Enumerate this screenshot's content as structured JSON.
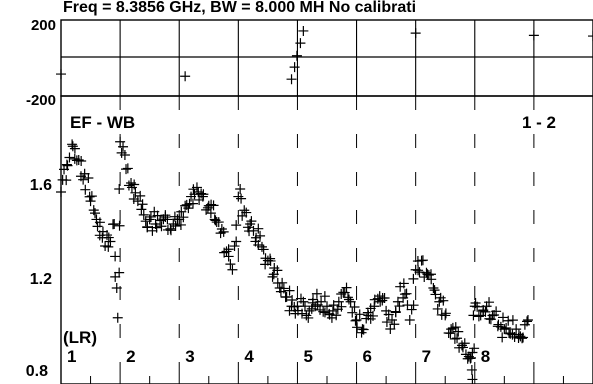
{
  "chart_data": [
    {
      "type": "scatter",
      "panel": "phase",
      "title": "Freq = 8.3856 GHz, BW = 8.000 MH   No calibrati",
      "y_ticks": [
        "200",
        "-200"
      ],
      "ylim": [
        -260,
        260
      ],
      "series": [
        {
          "points": [
            [
              0.0,
              -110
            ],
            [
              2.1,
              -125
            ],
            [
              3.9,
              -145
            ],
            [
              4.1,
              185
            ],
            [
              6.0,
              170
            ],
            [
              8.0,
              155
            ],
            [
              9.0,
              150
            ]
          ]
        }
      ]
    },
    {
      "type": "scatter",
      "panel": "amplitude",
      "title": "EF - WB",
      "baseline_label": "1 - 2",
      "pol_label": "(LR)",
      "y_ticks": [
        "1.6",
        "1.2",
        "0.8"
      ],
      "ylim": [
        0.76,
        2.02
      ],
      "scan_labels": [
        "1",
        "2",
        "3",
        "4",
        "5",
        "6",
        "7",
        "8"
      ],
      "series": [
        {
          "points": [
            [
              0.0,
              1.6
            ],
            [
              0.1,
              1.72
            ],
            [
              0.2,
              1.8
            ],
            [
              0.3,
              1.74
            ],
            [
              0.4,
              1.68
            ],
            [
              0.5,
              1.56
            ],
            [
              0.6,
              1.48
            ],
            [
              0.7,
              1.4
            ],
            [
              0.8,
              1.36
            ],
            [
              0.9,
              1.46
            ],
            [
              0.96,
              1.05
            ],
            [
              1.0,
              1.82
            ],
            [
              1.1,
              1.7
            ],
            [
              1.2,
              1.62
            ],
            [
              1.3,
              1.56
            ],
            [
              1.4,
              1.5
            ],
            [
              1.5,
              1.48
            ],
            [
              1.6,
              1.46
            ],
            [
              1.7,
              1.45
            ],
            [
              1.8,
              1.48
            ],
            [
              1.9,
              1.46
            ],
            [
              2.0,
              1.48
            ],
            [
              2.1,
              1.54
            ],
            [
              2.2,
              1.58
            ],
            [
              2.3,
              1.62
            ],
            [
              2.4,
              1.58
            ],
            [
              2.5,
              1.54
            ],
            [
              2.6,
              1.48
            ],
            [
              2.7,
              1.42
            ],
            [
              2.8,
              1.34
            ],
            [
              2.9,
              1.26
            ],
            [
              3.0,
              1.58
            ],
            [
              3.1,
              1.52
            ],
            [
              3.2,
              1.46
            ],
            [
              3.3,
              1.4
            ],
            [
              3.4,
              1.36
            ],
            [
              3.5,
              1.3
            ],
            [
              3.6,
              1.24
            ],
            [
              3.7,
              1.18
            ],
            [
              3.8,
              1.14
            ],
            [
              3.9,
              1.1
            ],
            [
              4.0,
              1.1
            ],
            [
              4.1,
              1.12
            ],
            [
              4.2,
              1.08
            ],
            [
              4.3,
              1.1
            ],
            [
              4.4,
              1.12
            ],
            [
              4.5,
              1.1
            ],
            [
              4.6,
              1.08
            ],
            [
              4.7,
              1.12
            ],
            [
              4.8,
              1.16
            ],
            [
              4.9,
              1.12
            ],
            [
              5.0,
              1.04
            ],
            [
              5.1,
              1.0
            ],
            [
              5.2,
              1.06
            ],
            [
              5.3,
              1.1
            ],
            [
              5.4,
              1.12
            ],
            [
              5.5,
              1.08
            ],
            [
              5.6,
              1.04
            ],
            [
              5.7,
              1.12
            ],
            [
              5.8,
              1.2
            ],
            [
              5.9,
              1.04
            ],
            [
              6.0,
              1.26
            ],
            [
              6.1,
              1.3
            ],
            [
              6.2,
              1.24
            ],
            [
              6.3,
              1.18
            ],
            [
              6.4,
              1.12
            ],
            [
              6.5,
              1.06
            ],
            [
              6.6,
              1.0
            ],
            [
              6.7,
              0.96
            ],
            [
              6.8,
              0.92
            ],
            [
              6.9,
              0.88
            ],
            [
              6.96,
              0.78
            ],
            [
              7.0,
              1.1
            ],
            [
              7.1,
              1.06
            ],
            [
              7.2,
              1.1
            ],
            [
              7.3,
              1.06
            ],
            [
              7.4,
              1.02
            ],
            [
              7.5,
              1.0
            ],
            [
              7.6,
              0.98
            ],
            [
              7.7,
              1.0
            ],
            [
              7.8,
              0.96
            ],
            [
              7.9,
              1.04
            ]
          ]
        }
      ]
    }
  ]
}
